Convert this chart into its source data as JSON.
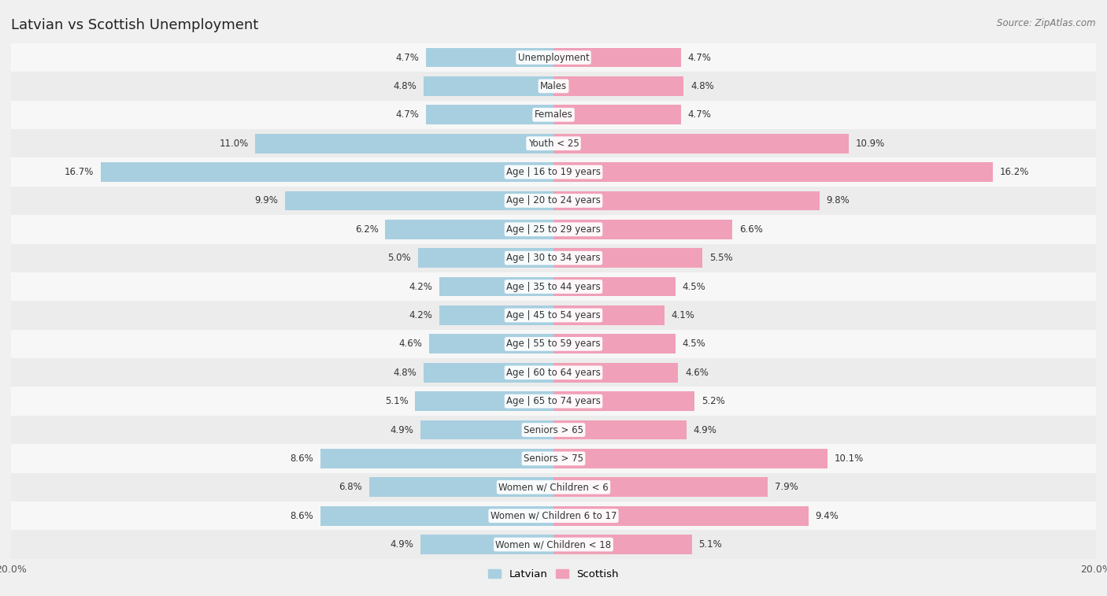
{
  "title": "Latvian vs Scottish Unemployment",
  "source": "Source: ZipAtlas.com",
  "categories": [
    "Unemployment",
    "Males",
    "Females",
    "Youth < 25",
    "Age | 16 to 19 years",
    "Age | 20 to 24 years",
    "Age | 25 to 29 years",
    "Age | 30 to 34 years",
    "Age | 35 to 44 years",
    "Age | 45 to 54 years",
    "Age | 55 to 59 years",
    "Age | 60 to 64 years",
    "Age | 65 to 74 years",
    "Seniors > 65",
    "Seniors > 75",
    "Women w/ Children < 6",
    "Women w/ Children 6 to 17",
    "Women w/ Children < 18"
  ],
  "latvian": [
    4.7,
    4.8,
    4.7,
    11.0,
    16.7,
    9.9,
    6.2,
    5.0,
    4.2,
    4.2,
    4.6,
    4.8,
    5.1,
    4.9,
    8.6,
    6.8,
    8.6,
    4.9
  ],
  "scottish": [
    4.7,
    4.8,
    4.7,
    10.9,
    16.2,
    9.8,
    6.6,
    5.5,
    4.5,
    4.1,
    4.5,
    4.6,
    5.2,
    4.9,
    10.1,
    7.9,
    9.4,
    5.1
  ],
  "latvian_color": "#a8cfe0",
  "scottish_color": "#f0a0b8",
  "row_colors": [
    "#f7f7f7",
    "#ececec"
  ],
  "background_color": "#f0f0f0",
  "xlim": 20.0,
  "bar_height": 0.68,
  "title_fontsize": 13,
  "value_fontsize": 8.5,
  "category_fontsize": 8.5,
  "legend_fontsize": 9.5
}
